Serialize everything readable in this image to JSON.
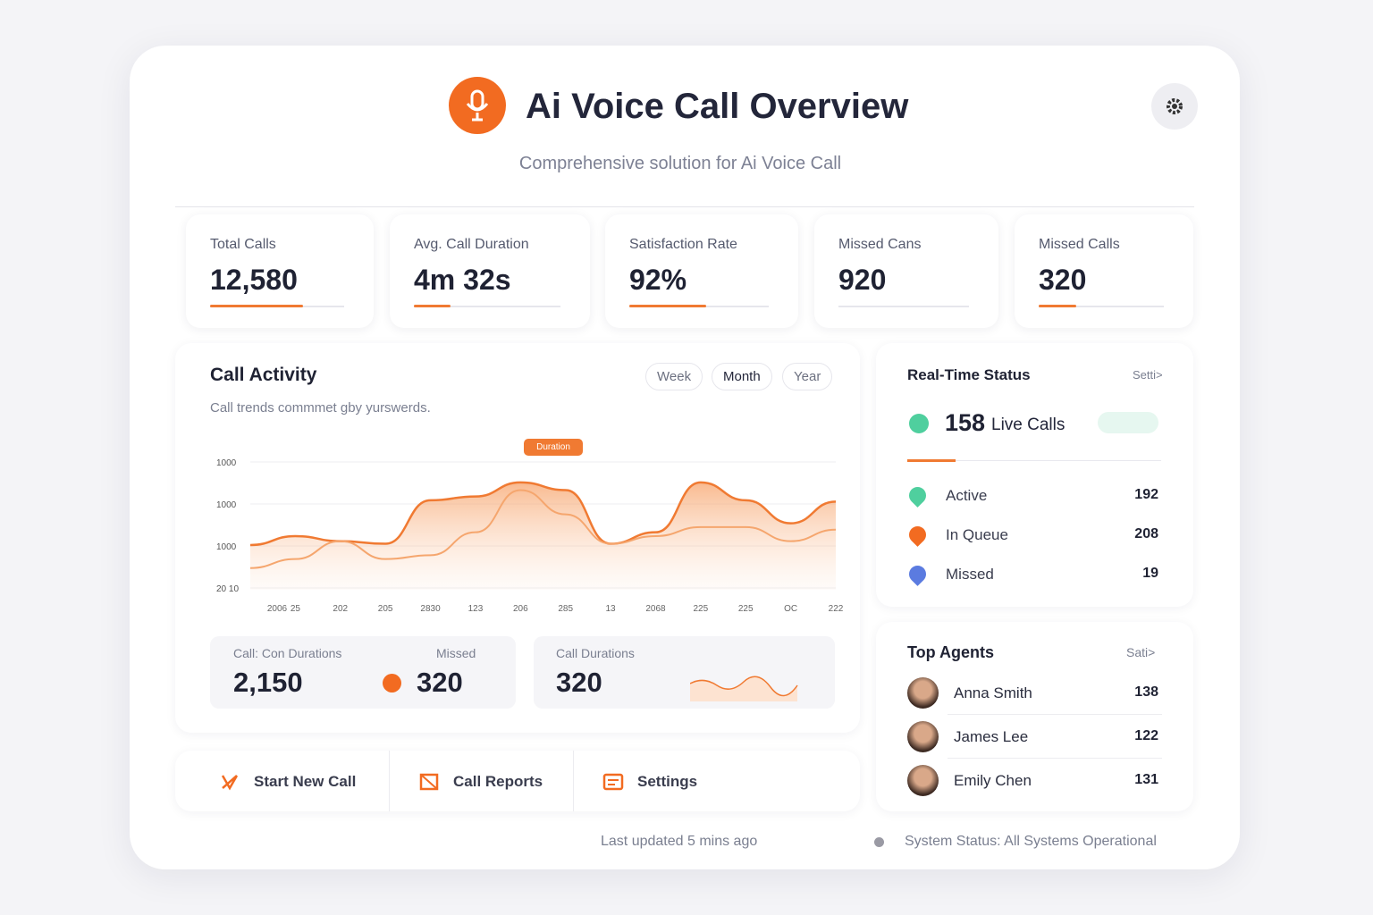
{
  "header": {
    "title": "Ai Voice Call Overview",
    "subtitle": "Comprehensive solution for Ai Voice Call"
  },
  "kpis": [
    {
      "label": "Total Calls",
      "value": "12,580",
      "progress": 0.69
    },
    {
      "label": "Avg. Call Duration",
      "value": "4m 32s",
      "progress": 0.25
    },
    {
      "label": "Satisfaction Rate",
      "value": "92%",
      "progress": 0.55
    },
    {
      "label": "Missed Cans",
      "value": "920",
      "progress": 0
    },
    {
      "label": "Missed Calls",
      "value": "320",
      "progress": 0.3
    }
  ],
  "call_activity": {
    "title": "Call Activity",
    "subtitle": "Call trends commmet gby yurswerds.",
    "tabs": [
      "Week",
      "Month",
      "Year"
    ],
    "tooltip": "Duration",
    "chart": {
      "type": "area",
      "y_labels": [
        "1000",
        "1000",
        "1000",
        "20 10"
      ],
      "x_labels": [
        "2006",
        "25",
        "202",
        "205",
        "2830",
        "123",
        "206",
        "285",
        "13",
        "2068",
        "225",
        "225",
        "OC",
        "222"
      ],
      "ylim": [
        0,
        100
      ],
      "series": [
        {
          "color": "#f07a32",
          "values": [
            35,
            42,
            38,
            36,
            70,
            73,
            84,
            78,
            36,
            45,
            84,
            70,
            52,
            69
          ]
        },
        {
          "color": "#f5a66e",
          "values": [
            17,
            24,
            38,
            24,
            27,
            45,
            78,
            59,
            36,
            42,
            49,
            49,
            38,
            47
          ]
        }
      ]
    },
    "stats": [
      {
        "label": "Call: Con Durations",
        "value": "2,150"
      },
      {
        "label": "Missed",
        "value": "320"
      },
      {
        "label": "Call Durations",
        "value": "320"
      }
    ]
  },
  "actions": [
    "Start New Call",
    "Call Reports",
    "Settings"
  ],
  "realtime": {
    "title": "Real-Time Status",
    "link": "Setti>",
    "live_count": "158",
    "live_label": "Live Calls",
    "rows": [
      {
        "label": "Active",
        "value": "192"
      },
      {
        "label": "In Queue",
        "value": "208"
      },
      {
        "label": "Missed",
        "value": "19"
      }
    ]
  },
  "agents": {
    "title": "Top Agents",
    "link": "Sati>",
    "rows": [
      {
        "name": "Anna Smith",
        "value": "138"
      },
      {
        "name": "James Lee",
        "value": "122"
      },
      {
        "name": "Emily Chen",
        "value": "131"
      }
    ]
  },
  "footer": {
    "updated": "Last updated 5 mins ago",
    "status": "System Status: All Systems Operational"
  }
}
